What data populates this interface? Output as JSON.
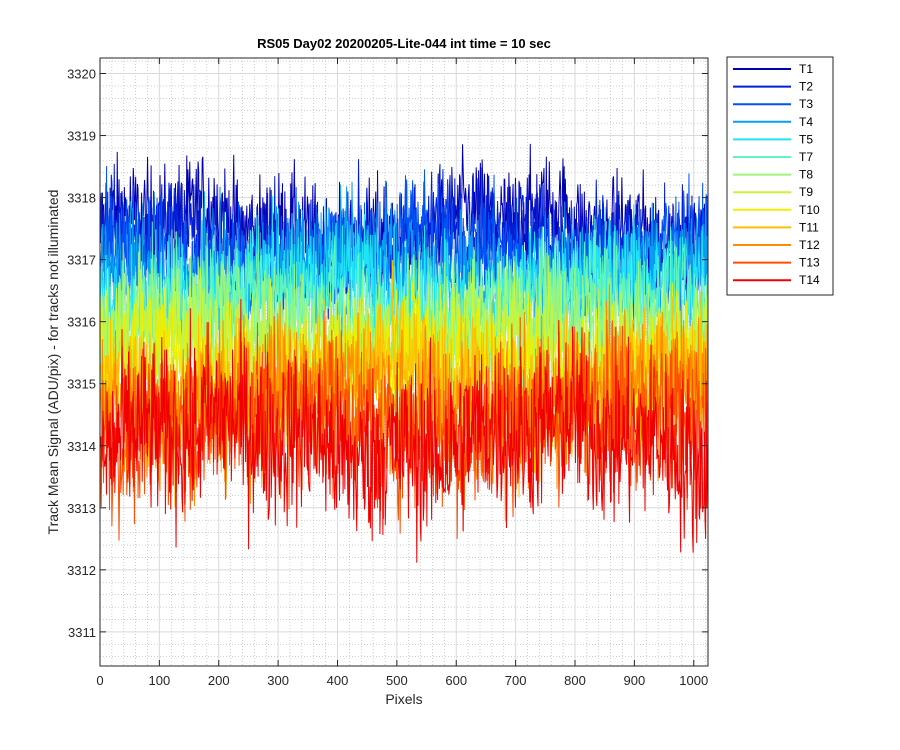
{
  "chart_data": {
    "type": "line",
    "title": "RS05 Day02 20200205-Lite-044 int time = 10 sec",
    "xlabel": "Pixels",
    "ylabel": "Track Mean Signal (ADU/pix) - for tracks not illuminated",
    "xlim": [
      0,
      1024
    ],
    "ylim": [
      3310.45,
      3320.25
    ],
    "x_ticks": [
      0,
      100,
      200,
      300,
      400,
      500,
      600,
      700,
      800,
      900,
      1000
    ],
    "y_ticks": [
      3311,
      3312,
      3313,
      3314,
      3315,
      3316,
      3317,
      3318,
      3319,
      3320
    ],
    "grid": true,
    "minor_grid": true,
    "legend_position": "outside-top-right",
    "x_points": 1024,
    "series": [
      {
        "name": "T1",
        "color": "#0000B4",
        "mean": 3317.5,
        "spread": 0.45
      },
      {
        "name": "T2",
        "color": "#001FD6",
        "mean": 3317.3,
        "spread": 0.45
      },
      {
        "name": "T3",
        "color": "#0053F5",
        "mean": 3317.1,
        "spread": 0.48
      },
      {
        "name": "T4",
        "color": "#0A9EF0",
        "mean": 3316.8,
        "spread": 0.5
      },
      {
        "name": "T5",
        "color": "#22E2F5",
        "mean": 3316.5,
        "spread": 0.5
      },
      {
        "name": "T7",
        "color": "#5EF5C0",
        "mean": 3316.2,
        "spread": 0.5
      },
      {
        "name": "T8",
        "color": "#9BF57C",
        "mean": 3315.9,
        "spread": 0.52
      },
      {
        "name": "T9",
        "color": "#C8F53C",
        "mean": 3315.6,
        "spread": 0.52
      },
      {
        "name": "T10",
        "color": "#F0EE00",
        "mean": 3315.3,
        "spread": 0.55
      },
      {
        "name": "T11",
        "color": "#FFBE00",
        "mean": 3315.0,
        "spread": 0.6
      },
      {
        "name": "T12",
        "color": "#FF8A00",
        "mean": 3314.7,
        "spread": 0.62
      },
      {
        "name": "T13",
        "color": "#FF4D00",
        "mean": 3314.4,
        "spread": 0.66
      },
      {
        "name": "T14",
        "color": "#F00000",
        "mean": 3314.1,
        "spread": 0.72
      }
    ]
  }
}
